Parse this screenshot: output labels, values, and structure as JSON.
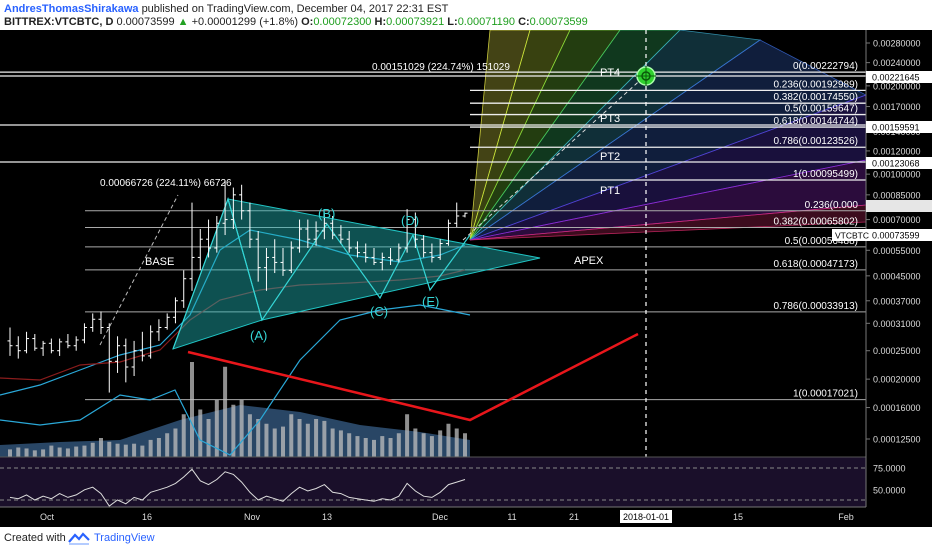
{
  "header": {
    "author": "AndresThomasShirakawa",
    "published": "published on TradingView.com, December 04, 2017 22:31 EST",
    "symbol": "BITTREX:VTCBTC, D",
    "last": "0.00073599",
    "change": "+0.00001299 (+1.8%)",
    "o_label": "O:",
    "o": "0.00072300",
    "h_label": "H:",
    "h": "0.00073921",
    "l_label": "L:",
    "l": "0.00071190",
    "c_label": "C:",
    "c": "0.00073599"
  },
  "footer": {
    "created": "Created with",
    "brand": "TradingView"
  },
  "colors": {
    "background": "#000000",
    "triangle": "#1fb3b3",
    "redline": "#e8161b",
    "axis_label_bg": "#ffffff",
    "pt4_marker": "#2fd12f"
  },
  "chart_data": {
    "type": "candlestick",
    "price_axis_ticks": [
      "0.00280000",
      "0.00240000",
      "0.00200000",
      "0.00170000",
      "0.00140000",
      "0.00120000",
      "0.00100000",
      "0.00085000",
      "0.00070000",
      "0.00055000",
      "0.00045000",
      "0.00037000",
      "0.00031000",
      "0.00025000",
      "0.00020000",
      "0.00016000",
      "0.00012500"
    ],
    "time_axis_ticks": [
      "Oct",
      "16",
      "Nov",
      "13",
      "Dec",
      "11",
      "21",
      "2018-01-01",
      "15",
      "Feb"
    ],
    "highlight_date": "2018-01-01",
    "price_labels": [
      "0.00221645",
      "0.00159591",
      "0.00123068",
      "VTCBTC",
      "0.00073599"
    ],
    "fib_levels": [
      {
        "text": "0(0.00222794)",
        "price": 0.00222794
      },
      {
        "text": "0.236(0.00192989)",
        "price": 0.00192989
      },
      {
        "text": "0.382(0.00174550)",
        "price": 0.0017455
      },
      {
        "text": "0.5(0.00159647)",
        "price": 0.00159647
      },
      {
        "text": "0.618(0.00144744)",
        "price": 0.00144744
      },
      {
        "text": "0.786(0.00123526)",
        "price": 0.00123526
      },
      {
        "text": "1(0.00095499)",
        "price": 0.00095499
      },
      {
        "text": "0.236(0.000",
        "price": 0.00075
      },
      {
        "text": "0.382(0.00065802)",
        "price": 0.00065802
      },
      {
        "text": "0.5(0.00056488)",
        "price": 0.00056488
      },
      {
        "text": "0.618(0.00047173)",
        "price": 0.00047173
      },
      {
        "text": "0.786(0.00033913)",
        "price": 0.00033913
      },
      {
        "text": "1(0.00017021)",
        "price": 0.00017021
      }
    ],
    "pattern_labels": [
      "(A)",
      "(B)",
      "(C)",
      "(D)",
      "(E)",
      "BASE",
      "APEX"
    ],
    "targets": [
      "PT1",
      "PT2",
      "PT3",
      "PT4"
    ],
    "annotations": [
      "0.00066726 (224.11%) 66726",
      "0.00151029 (224.74%) 151029"
    ],
    "rsi_ticks": [
      "75.0000",
      "50.0000"
    ],
    "candles": [
      {
        "o": 0.00027,
        "h": 0.0003,
        "l": 0.00024,
        "c": 0.00026
      },
      {
        "o": 0.00026,
        "h": 0.00028,
        "l": 0.000235,
        "c": 0.00025
      },
      {
        "o": 0.00025,
        "h": 0.00029,
        "l": 0.000245,
        "c": 0.000275
      },
      {
        "o": 0.000275,
        "h": 0.000285,
        "l": 0.00025,
        "c": 0.000255
      },
      {
        "o": 0.000255,
        "h": 0.00027,
        "l": 0.00024,
        "c": 0.000265
      },
      {
        "o": 0.000265,
        "h": 0.000275,
        "l": 0.000245,
        "c": 0.00025
      },
      {
        "o": 0.00025,
        "h": 0.000275,
        "l": 0.00024,
        "c": 0.000268
      },
      {
        "o": 0.000268,
        "h": 0.000285,
        "l": 0.000255,
        "c": 0.00026
      },
      {
        "o": 0.00026,
        "h": 0.00028,
        "l": 0.00025,
        "c": 0.000272
      },
      {
        "o": 0.000272,
        "h": 0.00031,
        "l": 0.000265,
        "c": 0.0003
      },
      {
        "o": 0.0003,
        "h": 0.000335,
        "l": 0.00029,
        "c": 0.00032
      },
      {
        "o": 0.00032,
        "h": 0.00034,
        "l": 0.000285,
        "c": 0.0003
      },
      {
        "o": 0.0003,
        "h": 0.00031,
        "l": 0.00018,
        "c": 0.00023
      },
      {
        "o": 0.00023,
        "h": 0.00028,
        "l": 0.00021,
        "c": 0.00026
      },
      {
        "o": 0.00026,
        "h": 0.000275,
        "l": 0.000195,
        "c": 0.00022
      },
      {
        "o": 0.00022,
        "h": 0.00027,
        "l": 0.000205,
        "c": 0.00025
      },
      {
        "o": 0.00025,
        "h": 0.00029,
        "l": 0.00023,
        "c": 0.00024
      },
      {
        "o": 0.00024,
        "h": 0.000305,
        "l": 0.000235,
        "c": 0.00029
      },
      {
        "o": 0.00029,
        "h": 0.00032,
        "l": 0.00027,
        "c": 0.0003
      },
      {
        "o": 0.0003,
        "h": 0.000335,
        "l": 0.000295,
        "c": 0.000325
      },
      {
        "o": 0.000325,
        "h": 0.00038,
        "l": 0.00031,
        "c": 0.00037
      },
      {
        "o": 0.00037,
        "h": 0.00047,
        "l": 0.00035,
        "c": 0.00044
      },
      {
        "o": 0.00044,
        "h": 0.0008,
        "l": 0.0004,
        "c": 0.00052
      },
      {
        "o": 0.00052,
        "h": 0.00065,
        "l": 0.00047,
        "c": 0.0006
      },
      {
        "o": 0.0006,
        "h": 0.0007,
        "l": 0.00052,
        "c": 0.00056
      },
      {
        "o": 0.00056,
        "h": 0.00072,
        "l": 0.00054,
        "c": 0.00068
      },
      {
        "o": 0.00068,
        "h": 0.00095,
        "l": 0.00062,
        "c": 0.0007
      },
      {
        "o": 0.0007,
        "h": 0.0009,
        "l": 0.00065,
        "c": 0.00085
      },
      {
        "o": 0.00085,
        "h": 0.00092,
        "l": 0.0007,
        "c": 0.00075
      },
      {
        "o": 0.00075,
        "h": 0.0008,
        "l": 0.00056,
        "c": 0.0006
      },
      {
        "o": 0.0006,
        "h": 0.00064,
        "l": 0.00043,
        "c": 0.00048
      },
      {
        "o": 0.00048,
        "h": 0.00056,
        "l": 0.0004,
        "c": 0.00052
      },
      {
        "o": 0.00052,
        "h": 0.0006,
        "l": 0.00046,
        "c": 0.0005
      },
      {
        "o": 0.0005,
        "h": 0.00056,
        "l": 0.00045,
        "c": 0.00047
      },
      {
        "o": 0.00047,
        "h": 0.00059,
        "l": 0.00046,
        "c": 0.00056
      },
      {
        "o": 0.00056,
        "h": 0.0007,
        "l": 0.00054,
        "c": 0.00065
      },
      {
        "o": 0.00065,
        "h": 0.0007,
        "l": 0.00056,
        "c": 0.0006
      },
      {
        "o": 0.0006,
        "h": 0.00069,
        "l": 0.00057,
        "c": 0.00064
      },
      {
        "o": 0.00064,
        "h": 0.00074,
        "l": 0.0006,
        "c": 0.00068
      },
      {
        "o": 0.00068,
        "h": 0.00072,
        "l": 0.0006,
        "c": 0.00062
      },
      {
        "o": 0.00062,
        "h": 0.00067,
        "l": 0.00058,
        "c": 0.0006
      },
      {
        "o": 0.0006,
        "h": 0.00064,
        "l": 0.00054,
        "c": 0.00056
      },
      {
        "o": 0.00056,
        "h": 0.00059,
        "l": 0.00052,
        "c": 0.00054
      },
      {
        "o": 0.00054,
        "h": 0.00058,
        "l": 0.0005,
        "c": 0.00052
      },
      {
        "o": 0.00052,
        "h": 0.00056,
        "l": 0.00049,
        "c": 0.0005
      },
      {
        "o": 0.0005,
        "h": 0.00054,
        "l": 0.00047,
        "c": 0.00052
      },
      {
        "o": 0.00052,
        "h": 0.00056,
        "l": 0.00049,
        "c": 0.00051
      },
      {
        "o": 0.00051,
        "h": 0.00058,
        "l": 0.0005,
        "c": 0.00056
      },
      {
        "o": 0.00056,
        "h": 0.00076,
        "l": 0.00054,
        "c": 0.0007
      },
      {
        "o": 0.0007,
        "h": 0.00074,
        "l": 0.00056,
        "c": 0.0006
      },
      {
        "o": 0.0006,
        "h": 0.00062,
        "l": 0.00052,
        "c": 0.00054
      },
      {
        "o": 0.00054,
        "h": 0.00058,
        "l": 0.0005,
        "c": 0.00052
      },
      {
        "o": 0.00052,
        "h": 0.0006,
        "l": 0.00051,
        "c": 0.00058
      },
      {
        "o": 0.00058,
        "h": 0.0007,
        "l": 0.00057,
        "c": 0.00068
      },
      {
        "o": 0.00068,
        "h": 0.0008,
        "l": 0.00066,
        "c": 0.00072
      },
      {
        "o": 0.00072,
        "h": 0.000739,
        "l": 0.000712,
        "c": 0.000736
      }
    ],
    "rsi": [
      52,
      51,
      54,
      50,
      53,
      51,
      55,
      52,
      54,
      58,
      60,
      55,
      45,
      50,
      47,
      52,
      50,
      56,
      58,
      60,
      63,
      68,
      74,
      65,
      62,
      66,
      72,
      70,
      64,
      56,
      50,
      53,
      51,
      49,
      55,
      60,
      57,
      59,
      62,
      56,
      55,
      52,
      51,
      50,
      49,
      51,
      50,
      53,
      63,
      57,
      53,
      52,
      56,
      62,
      64,
      66
    ]
  }
}
